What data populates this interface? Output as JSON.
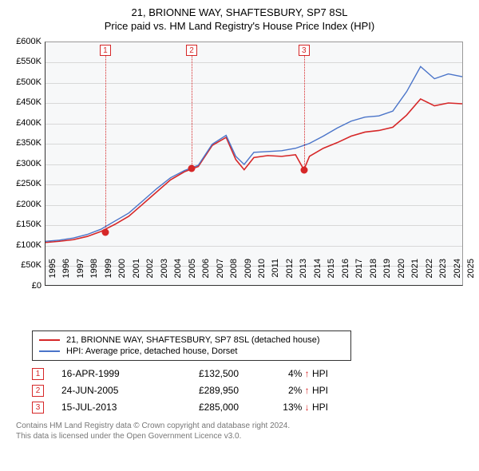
{
  "title": {
    "line1": "21, BRIONNE WAY, SHAFTESBURY, SP7 8SL",
    "line2": "Price paid vs. HM Land Registry's House Price Index (HPI)"
  },
  "chart": {
    "type": "line",
    "background_color": "#f7f8f9",
    "grid_color": "#d8d8d8",
    "axis_color": "#333333",
    "yaxis": {
      "min": 0,
      "max": 600000,
      "step": 50000,
      "ticks": [
        "£0",
        "£50K",
        "£100K",
        "£150K",
        "£200K",
        "£250K",
        "£300K",
        "£350K",
        "£400K",
        "£450K",
        "£500K",
        "£550K",
        "£600K"
      ],
      "label_fontsize": 11
    },
    "xaxis": {
      "min": 1995,
      "max": 2025,
      "ticks": [
        "1995",
        "1996",
        "1997",
        "1998",
        "1999",
        "2000",
        "2001",
        "2002",
        "2003",
        "2004",
        "2005",
        "2006",
        "2007",
        "2008",
        "2009",
        "2010",
        "2011",
        "2012",
        "2013",
        "2014",
        "2015",
        "2016",
        "2017",
        "2018",
        "2019",
        "2020",
        "2021",
        "2022",
        "2023",
        "2024",
        "2025"
      ],
      "label_fontsize": 11,
      "label_rotation": -90
    },
    "series": [
      {
        "name": "property",
        "label": "21, BRIONNE WAY, SHAFTESBURY, SP7 8SL (detached house)",
        "color": "#d62728",
        "line_width": 1.6,
        "data_years": [
          1995,
          1996,
          1997,
          1998,
          1999,
          2000,
          2001,
          2002,
          2003,
          2004,
          2005,
          2006,
          2007,
          2008,
          2008.7,
          2009.3,
          2010,
          2011,
          2012,
          2013,
          2013.6,
          2014,
          2015,
          2016,
          2017,
          2018,
          2019,
          2020,
          2021,
          2022,
          2023,
          2024,
          2025
        ],
        "data_values": [
          105000,
          108000,
          112000,
          120000,
          132500,
          150000,
          170000,
          200000,
          230000,
          260000,
          280000,
          293000,
          345000,
          365000,
          310000,
          285000,
          315000,
          320000,
          318000,
          322000,
          285000,
          318000,
          338000,
          352000,
          368000,
          378000,
          382000,
          390000,
          420000,
          460000,
          443000,
          450000,
          448000
        ]
      },
      {
        "name": "hpi",
        "label": "HPI: Average price, detached house, Dorset",
        "color": "#4a74c9",
        "line_width": 1.4,
        "data_years": [
          1995,
          1996,
          1997,
          1998,
          1999,
          2000,
          2001,
          2002,
          2003,
          2004,
          2005,
          2006,
          2007,
          2008,
          2008.7,
          2009.3,
          2010,
          2011,
          2012,
          2013,
          2014,
          2015,
          2016,
          2017,
          2018,
          2019,
          2020,
          2021,
          2022,
          2023,
          2024,
          2025
        ],
        "data_values": [
          108000,
          111000,
          116000,
          125000,
          138000,
          158000,
          178000,
          208000,
          238000,
          265000,
          283000,
          296000,
          348000,
          370000,
          318000,
          298000,
          328000,
          330000,
          332000,
          338000,
          350000,
          368000,
          388000,
          405000,
          415000,
          418000,
          430000,
          478000,
          540000,
          510000,
          522000,
          515000
        ]
      }
    ],
    "sale_markers": [
      {
        "n": "1",
        "year": 1999.29,
        "value": 132500
      },
      {
        "n": "2",
        "year": 2005.48,
        "value": 289950
      },
      {
        "n": "3",
        "year": 2013.54,
        "value": 285000
      }
    ],
    "marker_box_color": "#d62728",
    "marker_vline_style": "dotted"
  },
  "legend": {
    "items": [
      {
        "color": "#d62728",
        "text": "21, BRIONNE WAY, SHAFTESBURY, SP7 8SL (detached house)"
      },
      {
        "color": "#4a74c9",
        "text": "HPI: Average price, detached house, Dorset"
      }
    ]
  },
  "sales": [
    {
      "n": "1",
      "date": "16-APR-1999",
      "price": "£132,500",
      "diff_pct": "4%",
      "arrow": "↑",
      "diff_label": "HPI"
    },
    {
      "n": "2",
      "date": "24-JUN-2005",
      "price": "£289,950",
      "diff_pct": "2%",
      "arrow": "↑",
      "diff_label": "HPI"
    },
    {
      "n": "3",
      "date": "15-JUL-2013",
      "price": "£285,000",
      "diff_pct": "13%",
      "arrow": "↓",
      "diff_label": "HPI"
    }
  ],
  "footer": {
    "line1": "Contains HM Land Registry data © Crown copyright and database right 2024.",
    "line2": "This data is licensed under the Open Government Licence v3.0."
  },
  "colors": {
    "text": "#000000",
    "footer_text": "#777777"
  }
}
